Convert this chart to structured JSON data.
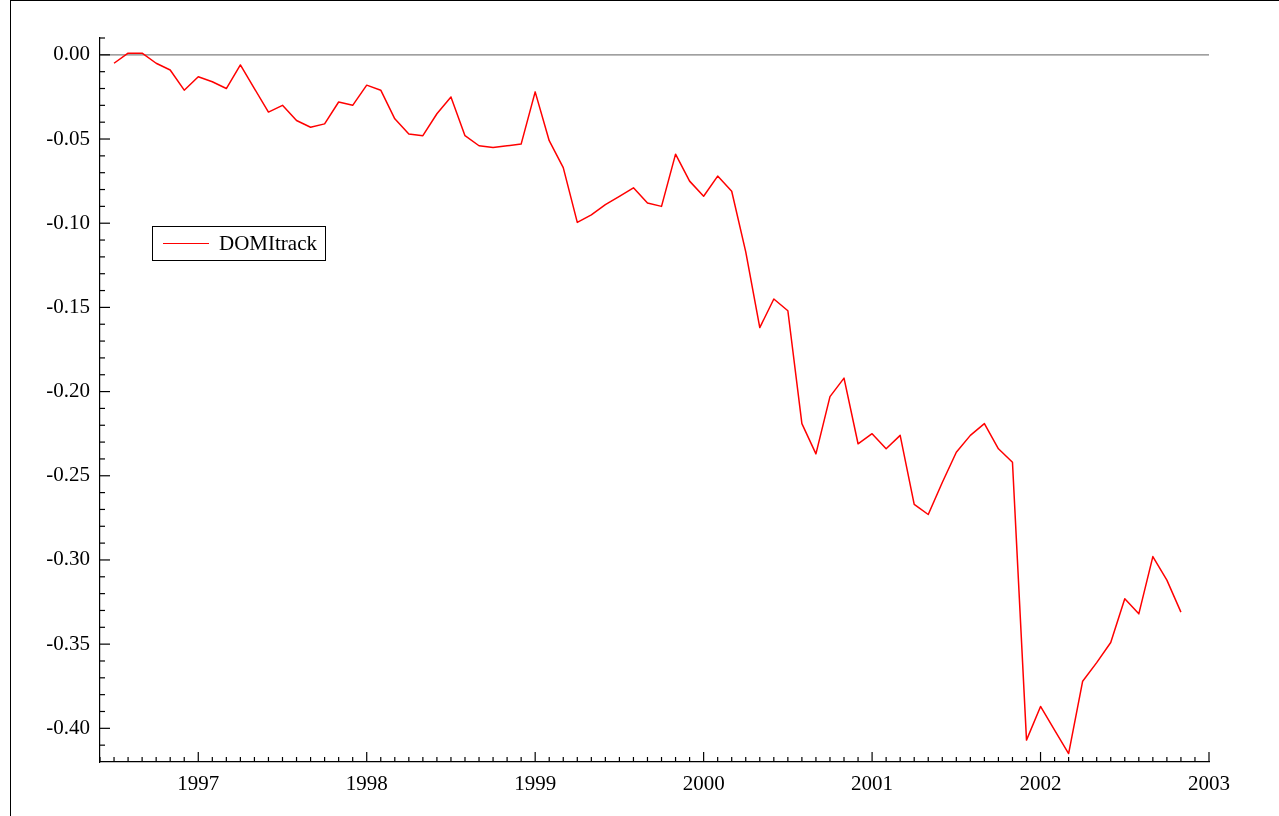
{
  "chart_data": {
    "type": "line",
    "legend": "top left",
    "grid": false,
    "marker": "none",
    "line_style": "solid",
    "x": [
      "1996-07",
      "1996-08",
      "1996-09",
      "1996-10",
      "1996-11",
      "1996-12",
      "1997-01",
      "1997-02",
      "1997-03",
      "1997-04",
      "1997-05",
      "1997-06",
      "1997-07",
      "1997-08",
      "1997-09",
      "1997-10",
      "1997-11",
      "1997-12",
      "1998-01",
      "1998-02",
      "1998-03",
      "1998-04",
      "1998-05",
      "1998-06",
      "1998-07",
      "1998-08",
      "1998-09",
      "1998-10",
      "1998-11",
      "1998-12",
      "1999-01",
      "1999-02",
      "1999-03",
      "1999-04",
      "1999-05",
      "1999-06",
      "1999-07",
      "1999-08",
      "1999-09",
      "1999-10",
      "1999-11",
      "1999-12",
      "2000-01",
      "2000-02",
      "2000-03",
      "2000-04",
      "2000-05",
      "2000-06",
      "2000-07",
      "2000-08",
      "2000-09",
      "2000-10",
      "2000-11",
      "2000-12",
      "2001-01",
      "2001-02",
      "2001-03",
      "2001-04",
      "2001-05",
      "2001-06",
      "2001-07",
      "2001-08",
      "2001-09",
      "2001-10",
      "2001-11",
      "2001-12",
      "2002-01",
      "2002-02",
      "2002-03",
      "2002-04",
      "2002-05",
      "2002-06",
      "2002-07",
      "2002-08",
      "2002-09",
      "2002-10",
      "2002-11"
    ],
    "series": [
      {
        "name": "DOMItrack",
        "color": "#ff0000",
        "values": [
          -0.005,
          0.001,
          0.001,
          -0.005,
          -0.009,
          -0.021,
          -0.013,
          -0.016,
          -0.02,
          -0.006,
          -0.02,
          -0.034,
          -0.03,
          -0.039,
          -0.043,
          -0.041,
          -0.028,
          -0.03,
          -0.018,
          -0.021,
          -0.038,
          -0.047,
          -0.048,
          -0.035,
          -0.025,
          -0.048,
          -0.054,
          -0.055,
          -0.054,
          -0.053,
          -0.022,
          -0.051,
          -0.067,
          -0.0995,
          -0.095,
          -0.089,
          -0.084,
          -0.079,
          -0.088,
          -0.09,
          -0.059,
          -0.075,
          -0.084,
          -0.072,
          -0.081,
          -0.117,
          -0.162,
          -0.145,
          -0.152,
          -0.219,
          -0.237,
          -0.203,
          -0.192,
          -0.231,
          -0.225,
          -0.234,
          -0.226,
          -0.267,
          -0.273,
          -0.254,
          -0.236,
          -0.226,
          -0.219,
          -0.234,
          -0.242,
          -0.407,
          -0.387,
          -0.401,
          -0.415,
          -0.372,
          -0.361,
          -0.349,
          -0.323,
          -0.332,
          -0.298,
          -0.312,
          -0.331
        ]
      }
    ],
    "ref_lines": [
      {
        "axis": "y",
        "value": 0,
        "color": "#808080"
      }
    ],
    "xlim": [
      "1996-06",
      "2003-01"
    ],
    "xticks": [
      {
        "value": "1996-06",
        "label": null
      },
      {
        "value": "1996-07",
        "label": null
      },
      {
        "value": "1996-08",
        "label": null
      },
      {
        "value": "1996-09",
        "label": null
      },
      {
        "value": "1996-10",
        "label": null
      },
      {
        "value": "1996-11",
        "label": null
      },
      {
        "value": "1996-12",
        "label": null
      },
      "1997",
      {
        "value": "1997-02",
        "label": null
      },
      {
        "value": "1997-03",
        "label": null
      },
      {
        "value": "1997-04",
        "label": null
      },
      {
        "value": "1997-05",
        "label": null
      },
      {
        "value": "1997-06",
        "label": null
      },
      {
        "value": "1997-07",
        "label": null
      },
      {
        "value": "1997-08",
        "label": null
      },
      {
        "value": "1997-09",
        "label": null
      },
      {
        "value": "1997-10",
        "label": null
      },
      {
        "value": "1997-11",
        "label": null
      },
      {
        "value": "1997-12",
        "label": null
      },
      "1998",
      {
        "value": "1998-02",
        "label": null
      },
      {
        "value": "1998-03",
        "label": null
      },
      {
        "value": "1998-04",
        "label": null
      },
      {
        "value": "1998-05",
        "label": null
      },
      {
        "value": "1998-06",
        "label": null
      },
      {
        "value": "1998-07",
        "label": null
      },
      {
        "value": "1998-08",
        "label": null
      },
      {
        "value": "1998-09",
        "label": null
      },
      {
        "value": "1998-10",
        "label": null
      },
      {
        "value": "1998-11",
        "label": null
      },
      {
        "value": "1998-12",
        "label": null
      },
      "1999",
      {
        "value": "1999-02",
        "label": null
      },
      {
        "value": "1999-03",
        "label": null
      },
      {
        "value": "1999-04",
        "label": null
      },
      {
        "value": "1999-05",
        "label": null
      },
      {
        "value": "1999-06",
        "label": null
      },
      {
        "value": "1999-07",
        "label": null
      },
      {
        "value": "1999-08",
        "label": null
      },
      {
        "value": "1999-09",
        "label": null
      },
      {
        "value": "1999-10",
        "label": null
      },
      {
        "value": "1999-11",
        "label": null
      },
      {
        "value": "1999-12",
        "label": null
      },
      "2000",
      {
        "value": "2000-02",
        "label": null
      },
      {
        "value": "2000-03",
        "label": null
      },
      {
        "value": "2000-04",
        "label": null
      },
      {
        "value": "2000-05",
        "label": null
      },
      {
        "value": "2000-06",
        "label": null
      },
      {
        "value": "2000-07",
        "label": null
      },
      {
        "value": "2000-08",
        "label": null
      },
      {
        "value": "2000-09",
        "label": null
      },
      {
        "value": "2000-10",
        "label": null
      },
      {
        "value": "2000-11",
        "label": null
      },
      {
        "value": "2000-12",
        "label": null
      },
      "2001",
      {
        "value": "2001-02",
        "label": null
      },
      {
        "value": "2001-03",
        "label": null
      },
      {
        "value": "2001-04",
        "label": null
      },
      {
        "value": "2001-05",
        "label": null
      },
      {
        "value": "2001-06",
        "label": null
      },
      {
        "value": "2001-07",
        "label": null
      },
      {
        "value": "2001-08",
        "label": null
      },
      {
        "value": "2001-09",
        "label": null
      },
      {
        "value": "2001-10",
        "label": null
      },
      {
        "value": "2001-11",
        "label": null
      },
      {
        "value": "2001-12",
        "label": null
      },
      "2002",
      {
        "value": "2002-02",
        "label": null
      },
      {
        "value": "2002-03",
        "label": null
      },
      {
        "value": "2002-04",
        "label": null
      },
      {
        "value": "2002-05",
        "label": null
      },
      {
        "value": "2002-06",
        "label": null
      },
      {
        "value": "2002-07",
        "label": null
      },
      {
        "value": "2002-08",
        "label": null
      },
      {
        "value": "2002-09",
        "label": null
      },
      {
        "value": "2002-10",
        "label": null
      },
      {
        "value": "2002-11",
        "label": null
      },
      {
        "value": "2002-12",
        "label": null
      },
      "2003"
    ],
    "ylim": [
      -0.42,
      0.01
    ],
    "yticks": [
      {
        "value": 0.01,
        "label": null
      },
      {
        "value": 0,
        "label": "0.00"
      },
      {
        "value": -0.01,
        "label": null
      },
      {
        "value": -0.02,
        "label": null
      },
      {
        "value": -0.03,
        "label": null
      },
      {
        "value": -0.04,
        "label": null
      },
      {
        "value": -0.05,
        "label": "-0.05"
      },
      {
        "value": -0.06,
        "label": null
      },
      {
        "value": -0.07,
        "label": null
      },
      {
        "value": -0.08,
        "label": null
      },
      {
        "value": -0.09,
        "label": null
      },
      {
        "value": -0.1,
        "label": "-0.10"
      },
      {
        "value": -0.11,
        "label": null
      },
      {
        "value": -0.12,
        "label": null
      },
      {
        "value": -0.13,
        "label": null
      },
      {
        "value": -0.14,
        "label": null
      },
      {
        "value": -0.15,
        "label": "-0.15"
      },
      {
        "value": -0.16,
        "label": null
      },
      {
        "value": -0.17,
        "label": null
      },
      {
        "value": -0.18,
        "label": null
      },
      {
        "value": -0.19,
        "label": null
      },
      {
        "value": -0.2,
        "label": "-0.20"
      },
      {
        "value": -0.21,
        "label": null
      },
      {
        "value": -0.22,
        "label": null
      },
      {
        "value": -0.23,
        "label": null
      },
      {
        "value": -0.24,
        "label": null
      },
      {
        "value": -0.25,
        "label": "-0.25"
      },
      {
        "value": -0.26,
        "label": null
      },
      {
        "value": -0.27,
        "label": null
      },
      {
        "value": -0.28,
        "label": null
      },
      {
        "value": -0.29,
        "label": null
      },
      {
        "value": -0.3,
        "label": "-0.30"
      },
      {
        "value": -0.31,
        "label": null
      },
      {
        "value": -0.32,
        "label": null
      },
      {
        "value": -0.33,
        "label": null
      },
      {
        "value": -0.34,
        "label": null
      },
      {
        "value": -0.35,
        "label": "-0.35"
      },
      {
        "value": -0.36,
        "label": null
      },
      {
        "value": -0.37,
        "label": null
      },
      {
        "value": -0.38,
        "label": null
      },
      {
        "value": -0.39,
        "label": null
      },
      {
        "value": -0.4,
        "label": "-0.40"
      },
      {
        "value": -0.41,
        "label": null
      }
    ]
  }
}
